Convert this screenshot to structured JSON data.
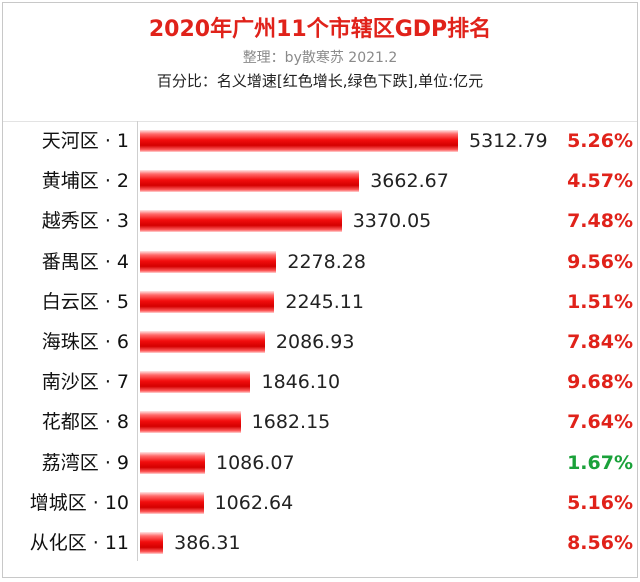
{
  "header": {
    "title": "2020年广州11个市辖区GDP排名",
    "subtitle": "整理：by散寒苏 2021.2",
    "note": "百分比：名义增速[红色增长,绿色下跌],单位:亿元"
  },
  "colors": {
    "title": "#e0221a",
    "bar": "#e60000",
    "increase": "#e0221a",
    "decrease": "#1aa13a"
  },
  "chart_data": {
    "type": "bar",
    "orientation": "horizontal",
    "title": "2020年广州11个市辖区GDP排名",
    "subtitle": "整理：by散寒苏 2021.2",
    "note": "百分比：名义增速[红色增长,绿色下跌],单位:亿元",
    "unit": "亿元",
    "categories": [
      "天河区 · 1",
      "黄埔区 · 2",
      "越秀区 · 3",
      "番禺区 · 4",
      "白云区 · 5",
      "海珠区 · 6",
      "南沙区 · 7",
      "花都区 · 8",
      "荔湾区 · 9",
      "增城区 · 10",
      "从化区 · 11"
    ],
    "values": [
      5312.79,
      3662.67,
      3370.05,
      2278.28,
      2245.11,
      2086.93,
      1846.1,
      1682.15,
      1086.07,
      1062.64,
      386.31
    ],
    "value_labels": [
      "5312.79",
      "3662.67",
      "3370.05",
      "2278.28",
      "2245.11",
      "2086.93",
      "1846.10",
      "1682.15",
      "1086.07",
      "1062.64",
      "386.31"
    ],
    "growth_labels": [
      "5.26%",
      "4.57%",
      "7.48%",
      "9.56%",
      "1.51%",
      "7.84%",
      "9.68%",
      "7.64%",
      "1.67%",
      "5.16%",
      "8.56%"
    ],
    "growth_colors": [
      "#e0221a",
      "#e0221a",
      "#e0221a",
      "#e0221a",
      "#e0221a",
      "#e0221a",
      "#e0221a",
      "#e0221a",
      "#1aa13a",
      "#e0221a",
      "#e0221a"
    ],
    "xlim": [
      0,
      5312.79
    ],
    "grid": false,
    "legend": "none"
  }
}
